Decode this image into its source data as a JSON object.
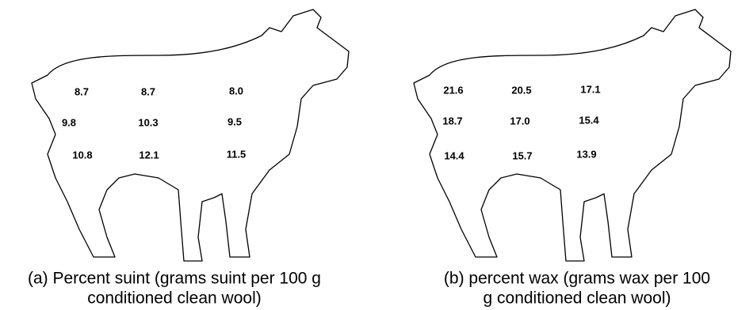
{
  "panels": [
    {
      "values": [
        [
          "8.7",
          "8.7",
          "8.0"
        ],
        [
          "9.8",
          "10.3",
          "9.5"
        ],
        [
          "10.8",
          "12.1",
          "11.5"
        ]
      ],
      "caption": [
        "(a) Percent suint (grams suint per 100 g",
        "conditioned clean wool)"
      ]
    },
    {
      "values": [
        [
          "21.6",
          "20.5",
          "17.1"
        ],
        [
          "18.7",
          "17.0",
          "15.4"
        ],
        [
          "14.4",
          "15.7",
          "13.9"
        ]
      ],
      "caption": [
        "(b) percent wax (grams wax per 100",
        "g conditioned clean wool)"
      ]
    }
  ]
}
